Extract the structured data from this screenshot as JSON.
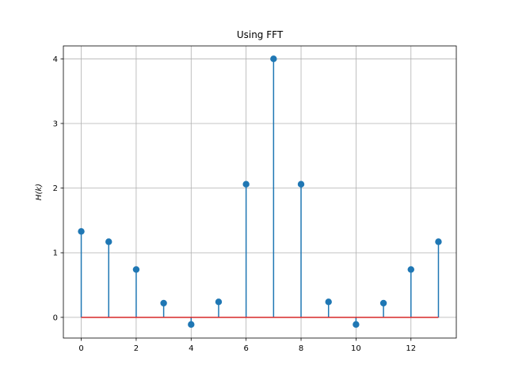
{
  "chart_data": {
    "type": "stem",
    "title": "Using FFT",
    "xlabel": "",
    "ylabel": "H(k)",
    "xlim": [
      -0.65,
      13.65
    ],
    "ylim": [
      -0.32,
      4.2
    ],
    "grid": true,
    "baseline": 0,
    "x_ticks": [
      0,
      2,
      4,
      6,
      8,
      10,
      12
    ],
    "y_ticks": [
      0,
      1,
      2,
      3,
      4
    ],
    "x": [
      0,
      1,
      2,
      3,
      4,
      5,
      6,
      7,
      8,
      9,
      10,
      11,
      12,
      13
    ],
    "values": [
      1.33,
      1.17,
      0.74,
      0.22,
      -0.11,
      0.24,
      2.06,
      4.0,
      2.06,
      0.24,
      -0.11,
      0.22,
      0.74,
      1.17
    ],
    "colors": {
      "stem": "#1f77b4",
      "marker": "#1f77b4",
      "baseline": "#d62728",
      "grid": "#b0b0b0"
    }
  }
}
